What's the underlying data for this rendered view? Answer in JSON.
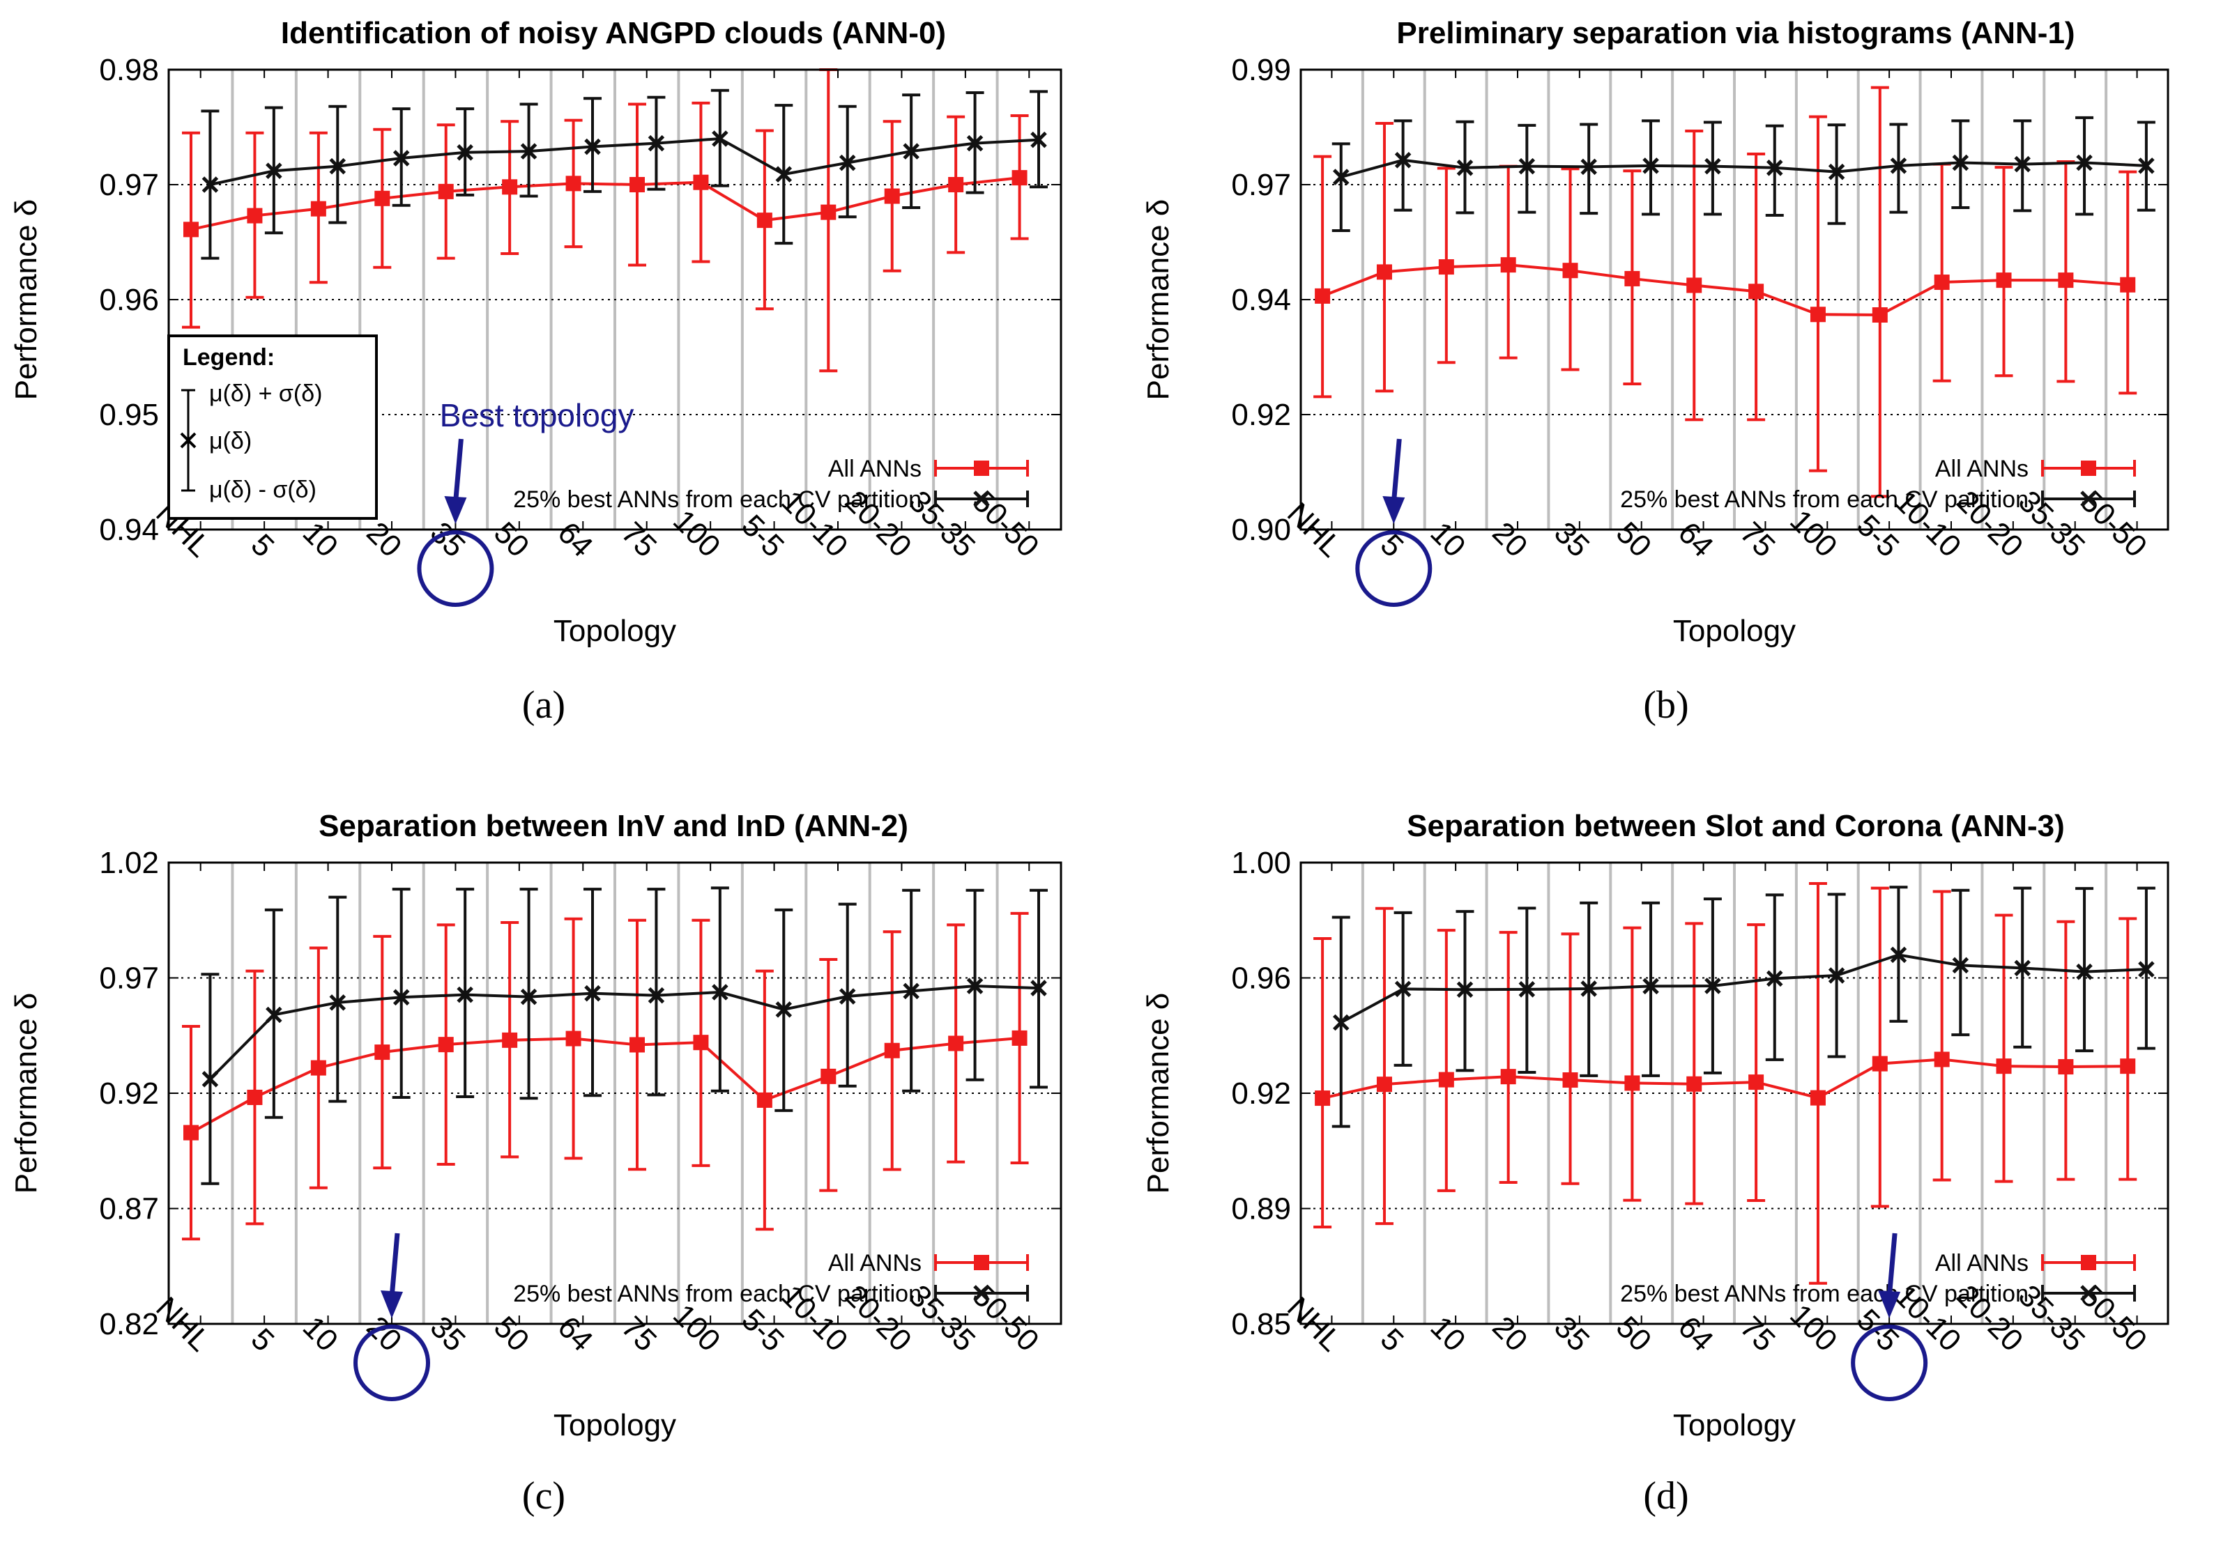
{
  "colors": {
    "all": "#ee1c1c",
    "best": "#111111",
    "annotation": "#1a1a8c",
    "grid": "#bdbdbd"
  },
  "legend_box": {
    "title": "Legend:",
    "upper": "μ(δ) + σ(δ)",
    "mid": "μ(δ)",
    "lower": "μ(δ) - σ(δ)"
  },
  "best_topology_label": "Best topology",
  "chart_data": [
    {
      "type": "line",
      "panel": "a",
      "caption": "(a)",
      "title": "Identification of noisy ANGPD clouds (ANN-0)",
      "xlabel": "Topology",
      "ylabel": "Performance δ",
      "categories": [
        "NHL",
        "5",
        "10",
        "20",
        "35",
        "50",
        "64",
        "75",
        "100",
        "5-5",
        "10-10",
        "20-20",
        "35-35",
        "50-50"
      ],
      "yticks": [
        "0.94",
        "0.95",
        "0.96",
        "0.97",
        "0.98"
      ],
      "ylim": [
        0.94,
        0.98
      ],
      "legend_position": "bottom-right",
      "best_index": 4,
      "series": [
        {
          "name": "All ANNs",
          "mean": [
            0.9661,
            0.9673,
            0.9679,
            0.9688,
            0.9694,
            0.9698,
            0.9701,
            0.97,
            0.9702,
            0.9669,
            0.9676,
            0.969,
            0.97,
            0.9706
          ],
          "lower": [
            0.9576,
            0.9602,
            0.9615,
            0.9628,
            0.9636,
            0.964,
            0.9646,
            0.963,
            0.9633,
            0.9592,
            0.9538,
            0.9625,
            0.9641,
            0.9653
          ],
          "upper": [
            0.9745,
            0.9745,
            0.9745,
            0.9748,
            0.9752,
            0.9755,
            0.9756,
            0.977,
            0.9771,
            0.9747,
            0.98,
            0.9755,
            0.9759,
            0.976
          ]
        },
        {
          "name": "25% best ANNs from each CV partition",
          "mean": [
            0.97,
            0.9712,
            0.9716,
            0.9723,
            0.9728,
            0.9729,
            0.9733,
            0.9736,
            0.974,
            0.9709,
            0.9719,
            0.9729,
            0.9736,
            0.9739
          ],
          "lower": [
            0.9636,
            0.9658,
            0.9667,
            0.9682,
            0.9691,
            0.969,
            0.9694,
            0.9696,
            0.9699,
            0.9649,
            0.9672,
            0.968,
            0.9693,
            0.9698
          ],
          "upper": [
            0.9764,
            0.9767,
            0.9768,
            0.9766,
            0.9766,
            0.977,
            0.9775,
            0.9776,
            0.9782,
            0.9769,
            0.9768,
            0.9778,
            0.978,
            0.9781
          ]
        }
      ]
    },
    {
      "type": "line",
      "panel": "b",
      "caption": "(b)",
      "title": "Preliminary separation via histograms (ANN-1)",
      "xlabel": "Topology",
      "ylabel": "Performance δ",
      "categories": [
        "NHL",
        "5",
        "10",
        "20",
        "35",
        "50",
        "64",
        "75",
        "100",
        "5-5",
        "10-10",
        "20-20",
        "35-35",
        "50-50"
      ],
      "yticks": [
        "0.90",
        "0.92",
        "0.94",
        "0.97",
        "0.99"
      ],
      "ylim": [
        0.9,
        0.99
      ],
      "legend_position": "bottom-right",
      "best_index": 1,
      "series": [
        {
          "name": "All ANNs",
          "mean": [
            0.9457,
            0.9504,
            0.9514,
            0.9518,
            0.9507,
            0.9491,
            0.9478,
            0.9466,
            0.9421,
            0.942,
            0.9484,
            0.9488,
            0.9488,
            0.9479
          ],
          "lower": [
            0.926,
            0.9271,
            0.9327,
            0.9336,
            0.9313,
            0.9285,
            0.9215,
            0.9215,
            0.9115,
            0.9065,
            0.9291,
            0.9301,
            0.929,
            0.9267
          ],
          "upper": [
            0.973,
            0.9795,
            0.9707,
            0.9711,
            0.9706,
            0.9702,
            0.978,
            0.9735,
            0.9808,
            0.9865,
            0.9715,
            0.9709,
            0.972,
            0.97
          ]
        },
        {
          "name": "25% best ANNs from each CV partition",
          "mean": [
            0.969,
            0.9723,
            0.9708,
            0.9711,
            0.971,
            0.9712,
            0.9711,
            0.9708,
            0.97,
            0.9712,
            0.9718,
            0.9715,
            0.9718,
            0.9712
          ],
          "lower": [
            0.9585,
            0.9625,
            0.962,
            0.9621,
            0.9619,
            0.9617,
            0.9617,
            0.9615,
            0.9599,
            0.9621,
            0.963,
            0.9624,
            0.9617,
            0.9625
          ],
          "upper": [
            0.9755,
            0.98,
            0.9798,
            0.9791,
            0.9793,
            0.98,
            0.9797,
            0.979,
            0.9792,
            0.9793,
            0.98,
            0.98,
            0.9806,
            0.9797
          ]
        }
      ]
    },
    {
      "type": "line",
      "panel": "c",
      "caption": "(c)",
      "title": "Separation between InV and InD (ANN-2)",
      "xlabel": "Topology",
      "ylabel": "Performance δ",
      "categories": [
        "NHL",
        "5",
        "10",
        "20",
        "35",
        "50",
        "64",
        "75",
        "100",
        "5-5",
        "10-10",
        "20-20",
        "35-35",
        "50-50"
      ],
      "yticks": [
        "0.82",
        "0.87",
        "0.92",
        "0.97",
        "1.02"
      ],
      "ylim": [
        0.82,
        1.02
      ],
      "legend_position": "bottom-right",
      "best_index": 3,
      "series": [
        {
          "name": "All ANNs",
          "mean": [
            0.9029,
            0.9182,
            0.931,
            0.9378,
            0.9411,
            0.943,
            0.9437,
            0.941,
            0.942,
            0.917,
            0.9273,
            0.9385,
            0.9416,
            0.9439
          ],
          "lower": [
            0.8568,
            0.8634,
            0.879,
            0.8876,
            0.8892,
            0.8924,
            0.8918,
            0.887,
            0.8886,
            0.861,
            0.8778,
            0.8869,
            0.8902,
            0.8898
          ],
          "upper": [
            0.949,
            0.973,
            0.983,
            0.988,
            0.993,
            0.994,
            0.9956,
            0.995,
            0.995,
            0.973,
            0.978,
            0.99,
            0.993,
            0.998
          ]
        },
        {
          "name": "25% best ANNs from each CV partition",
          "mean": [
            0.9261,
            0.954,
            0.9593,
            0.9616,
            0.9627,
            0.9618,
            0.9633,
            0.9624,
            0.9638,
            0.9563,
            0.962,
            0.9643,
            0.9665,
            0.9656
          ],
          "lower": [
            0.8808,
            0.9095,
            0.9165,
            0.9182,
            0.9185,
            0.9178,
            0.919,
            0.9193,
            0.921,
            0.9125,
            0.9231,
            0.921,
            0.9258,
            0.9226
          ],
          "upper": [
            0.9716,
            0.9995,
            1.005,
            1.0085,
            1.0085,
            1.0085,
            1.0085,
            1.0085,
            1.009,
            0.9995,
            1.002,
            1.008,
            1.008,
            1.008
          ]
        }
      ]
    },
    {
      "type": "line",
      "panel": "d",
      "caption": "(d)",
      "title": "Separation between Slot and Corona (ANN-3)",
      "xlabel": "Topology",
      "ylabel": "Performance δ",
      "categories": [
        "NHL",
        "5",
        "10",
        "20",
        "35",
        "50",
        "64",
        "75",
        "100",
        "5-5",
        "10-10",
        "20-20",
        "35-35",
        "50-50"
      ],
      "yticks": [
        "0.85",
        "0.89",
        "0.92",
        "0.96",
        "1.00"
      ],
      "ylim": [
        0.85,
        1.0
      ],
      "legend_position": "bottom-right",
      "best_index": 9,
      "series": [
        {
          "name": "All ANNs",
          "mean": [
            0.9234,
            0.9279,
            0.9294,
            0.9304,
            0.9293,
            0.9283,
            0.928,
            0.9286,
            0.9235,
            0.9346,
            0.936,
            0.9338,
            0.9336,
            0.9338
          ],
          "lower": [
            0.8815,
            0.8826,
            0.8933,
            0.896,
            0.8956,
            0.8902,
            0.8891,
            0.8901,
            0.8632,
            0.8882,
            0.8968,
            0.8963,
            0.897,
            0.897
          ],
          "upper": [
            0.9753,
            0.9851,
            0.978,
            0.9773,
            0.9768,
            0.9788,
            0.9802,
            0.9798,
            0.9932,
            0.9917,
            0.9906,
            0.9829,
            0.9808,
            0.9818
          ]
        },
        {
          "name": "25% best ANNs from each CV partition",
          "mean": [
            0.948,
            0.9589,
            0.9587,
            0.9588,
            0.959,
            0.9598,
            0.9599,
            0.9623,
            0.9633,
            0.97,
            0.9666,
            0.9657,
            0.9645,
            0.9653
          ],
          "lower": [
            0.9142,
            0.9341,
            0.9324,
            0.9318,
            0.9307,
            0.9307,
            0.9316,
            0.9359,
            0.9369,
            0.9484,
            0.944,
            0.94,
            0.9388,
            0.9396
          ],
          "upper": [
            0.9822,
            0.9837,
            0.9841,
            0.9852,
            0.9869,
            0.9869,
            0.9882,
            0.9895,
            0.9897,
            0.992,
            0.991,
            0.9917,
            0.9916,
            0.9917
          ]
        }
      ]
    }
  ]
}
